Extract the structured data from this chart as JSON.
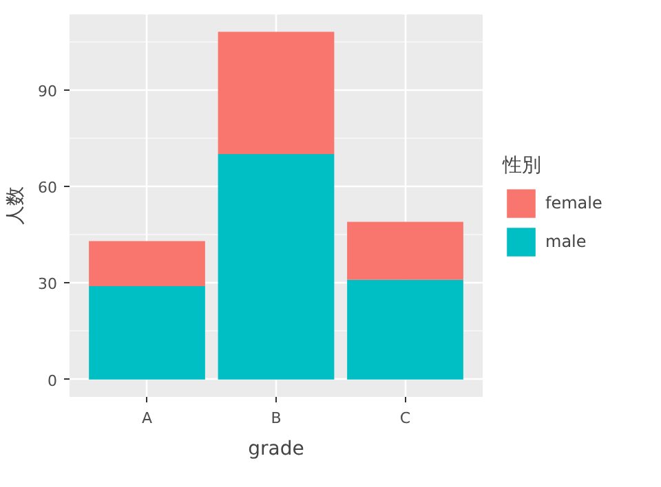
{
  "chart_data": {
    "type": "bar",
    "stacked": true,
    "xlabel": "grade",
    "ylabel": "人数",
    "legend_title": "性別",
    "legend": "right",
    "grid": true,
    "categories": [
      "A",
      "B",
      "C"
    ],
    "series": [
      {
        "name": "male",
        "color": "#00bfc4",
        "values": [
          29,
          70,
          31
        ]
      },
      {
        "name": "female",
        "color": "#f8766d",
        "values": [
          14,
          38,
          18
        ]
      }
    ],
    "ylim": [
      -5.4,
      113.4
    ],
    "yticks": [
      0,
      30,
      60,
      90
    ]
  }
}
